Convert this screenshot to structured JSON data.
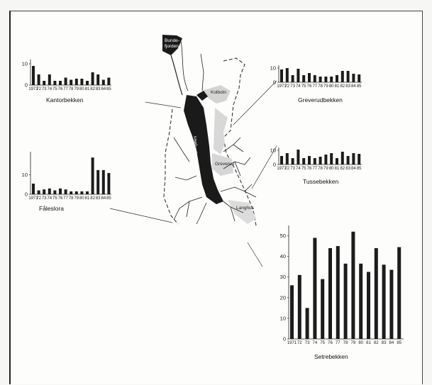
{
  "map": {
    "labels": {
      "bunde": "Bunde-",
      "fjorden": "fjorden",
      "kolbotn": "Kolbotn",
      "gjersjoen": "Gjersjøen",
      "greverud": "Greverud",
      "langhus": "Langhus"
    }
  },
  "chart_data": [
    {
      "type": "bar",
      "title": "Kantorbekken",
      "categories": [
        "1971",
        "72",
        "73",
        "74",
        "75",
        "76",
        "77",
        "78",
        "79",
        "80",
        "81",
        "82",
        "83",
        "84",
        "85"
      ],
      "values": [
        9,
        5,
        2,
        5,
        2,
        2,
        3.5,
        2.5,
        3,
        3,
        2,
        6,
        5,
        2.5,
        3.5
      ],
      "yticks": [
        "0",
        "10"
      ],
      "ylim": [
        0,
        12
      ]
    },
    {
      "type": "bar",
      "title": "Fåleslora",
      "categories": [
        "1971",
        "72",
        "73",
        "74",
        "75",
        "76",
        "77",
        "78",
        "79",
        "80",
        "81",
        "82",
        "83",
        "84",
        "85"
      ],
      "values": [
        5.5,
        2,
        2.5,
        3,
        2,
        3,
        2.5,
        1.5,
        1.5,
        1.5,
        1.5,
        19,
        12.5,
        12.5,
        11
      ],
      "yticks": [
        "0",
        "10"
      ],
      "ylim": [
        0,
        22
      ]
    },
    {
      "type": "bar",
      "title": "Greverudbekken",
      "categories": [
        "1971",
        "72",
        "73",
        "74",
        "75",
        "76",
        "77",
        "78",
        "79",
        "80",
        "81",
        "82",
        "83",
        "84",
        "85"
      ],
      "values": [
        9,
        10,
        5,
        9.5,
        5,
        6.5,
        5,
        4,
        4,
        4,
        5,
        8,
        8,
        6,
        5.5
      ],
      "yticks": [
        "0",
        "10"
      ],
      "ylim": [
        0,
        12
      ]
    },
    {
      "type": "bar",
      "title": "Tussebekken",
      "categories": [
        "1971",
        "72",
        "73",
        "74",
        "75",
        "76",
        "77",
        "78",
        "79",
        "80",
        "81",
        "82",
        "83",
        "84",
        "85"
      ],
      "values": [
        6,
        8,
        4.5,
        10.5,
        4.5,
        6,
        4.5,
        5.5,
        7,
        8,
        4.5,
        9,
        6,
        8,
        7.5
      ],
      "yticks": [
        "0",
        "10"
      ],
      "ylim": [
        0,
        12
      ]
    },
    {
      "type": "bar",
      "title": "Setrebekken",
      "categories": [
        "1971",
        "72",
        "73",
        "74",
        "75",
        "76",
        "77",
        "78",
        "79",
        "80",
        "81",
        "82",
        "83",
        "84",
        "85"
      ],
      "values": [
        26,
        31,
        15,
        49,
        29,
        44,
        45,
        36.5,
        52,
        36.5,
        32.5,
        44,
        36,
        33.5,
        44.5
      ],
      "yticks": [
        "0",
        "10",
        "20",
        "30",
        "40",
        "50"
      ],
      "ylim": [
        0,
        55
      ]
    }
  ]
}
